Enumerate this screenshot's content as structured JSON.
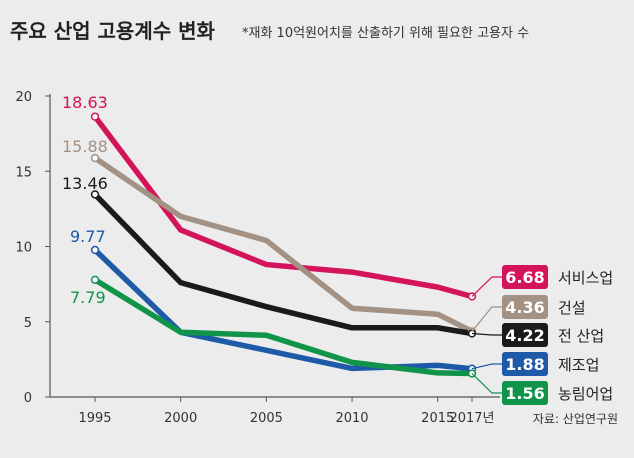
{
  "chart_data": {
    "type": "line",
    "title": "주요 산업 고용계수 변화",
    "subtitle": "*재화 10억원어치를 산출하기 위해 필요한 고용자 수",
    "source": "자료: 산업연구원",
    "x": [
      1995,
      2000,
      2005,
      2010,
      2015,
      2017
    ],
    "x_tick_labels": [
      "1995",
      "2000",
      "2005",
      "2010",
      "2015",
      "2017년"
    ],
    "ylim": [
      0,
      20
    ],
    "y_ticks": [
      0,
      5,
      10,
      15,
      20
    ],
    "grid": false,
    "series": [
      {
        "name": "서비스업",
        "color": "#d4145a",
        "values": [
          18.63,
          11.1,
          8.8,
          8.3,
          7.3,
          6.68
        ],
        "start_label": "18.63",
        "end_label": "6.68"
      },
      {
        "name": "건설",
        "color": "#a39184",
        "values": [
          15.88,
          12.0,
          10.4,
          5.9,
          5.5,
          4.36
        ],
        "start_label": "15.88",
        "end_label": "4.36"
      },
      {
        "name": "전 산업",
        "color": "#1a1a1a",
        "values": [
          13.46,
          7.6,
          6.0,
          4.6,
          4.6,
          4.22
        ],
        "start_label": "13.46",
        "end_label": "4.22"
      },
      {
        "name": "제조업",
        "color": "#1e5aa8",
        "values": [
          9.77,
          4.3,
          3.1,
          1.9,
          2.1,
          1.88
        ],
        "start_label": "9.77",
        "end_label": "1.88"
      },
      {
        "name": "농림어업",
        "color": "#10944a",
        "values": [
          7.79,
          4.3,
          4.1,
          2.3,
          1.6,
          1.56
        ],
        "start_label": "7.79",
        "end_label": "1.56"
      }
    ]
  }
}
